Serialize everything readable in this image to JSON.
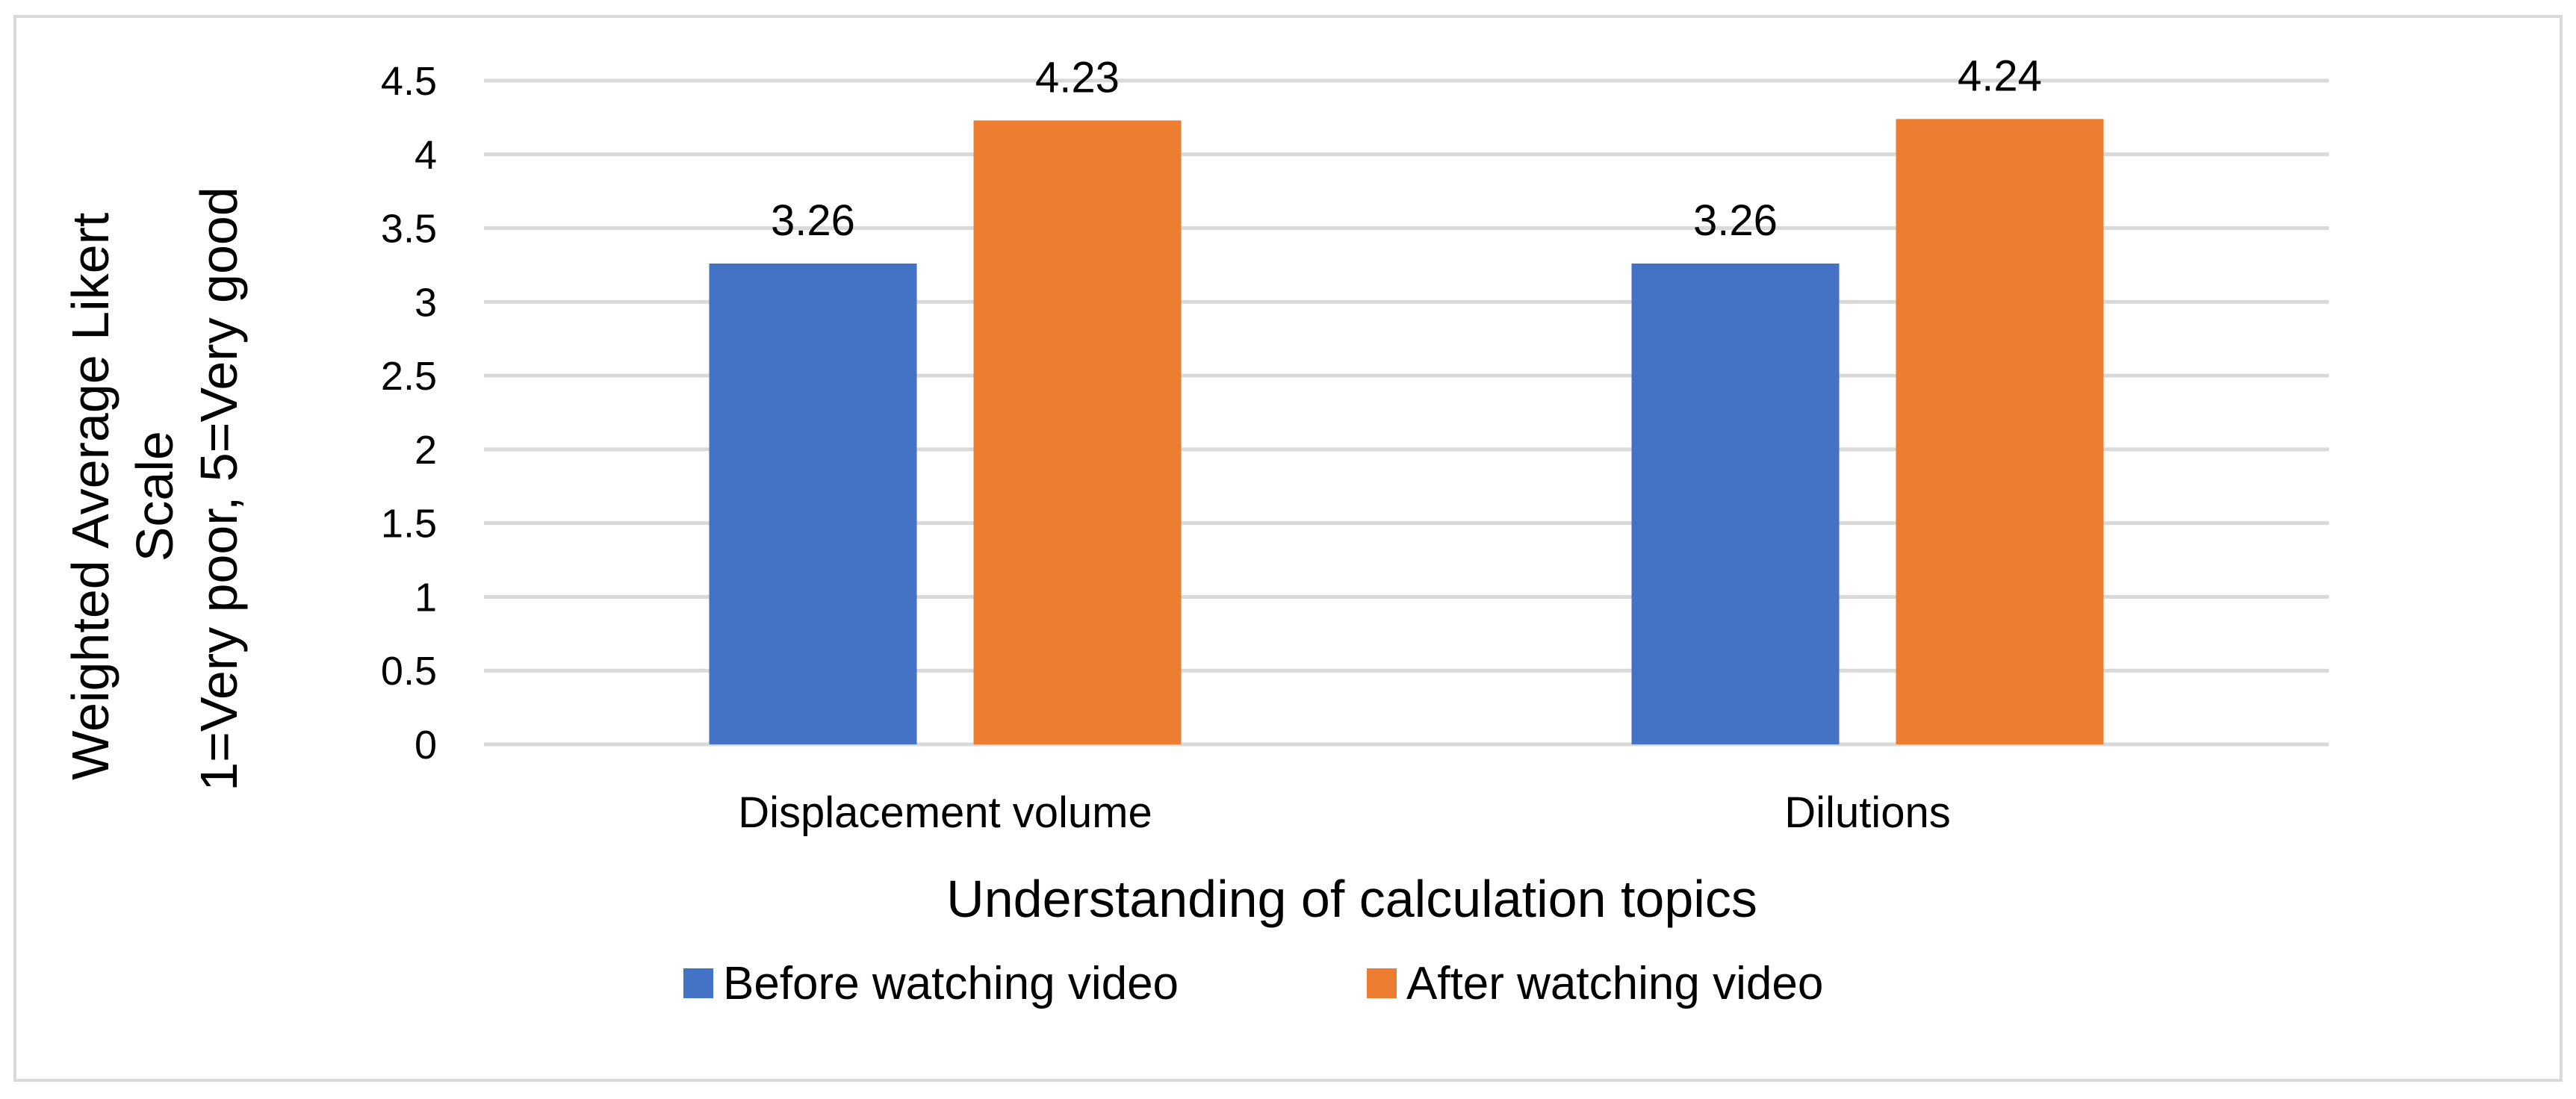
{
  "chart_data": {
    "type": "bar",
    "title": "",
    "categories": [
      "Displacement volume",
      "Dilutions"
    ],
    "series": [
      {
        "name": "Before watching video",
        "values": [
          3.26,
          3.26
        ],
        "color": "#4472C4"
      },
      {
        "name": "After watching video",
        "values": [
          4.23,
          4.24
        ],
        "color": "#ED7D31"
      }
    ],
    "data_labels": [
      [
        "3.26",
        "3.26"
      ],
      [
        "4.23",
        "4.24"
      ]
    ],
    "xlabel": "Understanding of calculation topics",
    "ylabel_lines": [
      "Weighted Average Likert",
      "Scale",
      "1=Very poor, 5=Very good"
    ],
    "ylim": [
      0,
      4.5
    ],
    "yticks": [
      "0",
      "0.5",
      "1",
      "1.5",
      "2",
      "2.5",
      "3",
      "3.5",
      "4",
      "4.5"
    ],
    "grid": true,
    "legend_position": "bottom",
    "gridline_color": "#D9D9D9",
    "border_color": "#D9D9D9"
  }
}
